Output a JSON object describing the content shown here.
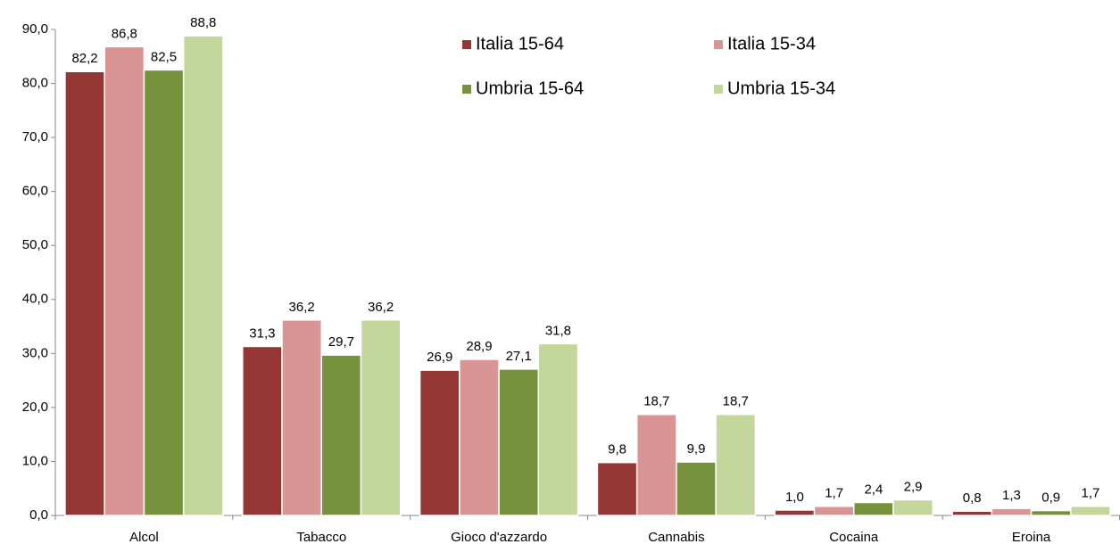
{
  "chart_data": {
    "type": "bar",
    "categories": [
      "Alcol",
      "Tabacco",
      "Gioco d'azzardo",
      "Cannabis",
      "Cocaina",
      "Eroina"
    ],
    "series": [
      {
        "name": "Italia 15-64",
        "color": "#943634",
        "values": [
          82.2,
          31.3,
          26.9,
          9.8,
          1.0,
          0.8
        ],
        "value_labels": [
          "82,2",
          "31,3",
          "26,9",
          "9,8",
          "1,0",
          "0,8"
        ]
      },
      {
        "name": "Italia 15-34",
        "color": "#d99594",
        "values": [
          86.8,
          36.2,
          28.9,
          18.7,
          1.7,
          1.3
        ],
        "value_labels": [
          "86,8",
          "36,2",
          "28,9",
          "18,7",
          "1,7",
          "1,3"
        ]
      },
      {
        "name": "Umbria 15-64",
        "color": "#76923c",
        "values": [
          82.5,
          29.7,
          27.1,
          9.9,
          2.4,
          0.9
        ],
        "value_labels": [
          "82,5",
          "29,7",
          "27,1",
          "9,9",
          "2,4",
          "0,9"
        ]
      },
      {
        "name": "Umbria 15-34",
        "color": "#c3d69b",
        "values": [
          88.8,
          36.2,
          31.8,
          18.7,
          2.9,
          1.7
        ],
        "value_labels": [
          "88,8",
          "36,2",
          "31,8",
          "18,7",
          "2,9",
          "1,7"
        ]
      }
    ],
    "ylim": [
      0,
      90
    ],
    "yticks": [
      {
        "value": 0,
        "label": "0,0"
      },
      {
        "value": 10,
        "label": "10,0"
      },
      {
        "value": 20,
        "label": "20,0"
      },
      {
        "value": 30,
        "label": "30,0"
      },
      {
        "value": 40,
        "label": "40,0"
      },
      {
        "value": 50,
        "label": "50,0"
      },
      {
        "value": 60,
        "label": "60,0"
      },
      {
        "value": 70,
        "label": "70,0"
      },
      {
        "value": 80,
        "label": "80,0"
      },
      {
        "value": 90,
        "label": "90,0"
      }
    ],
    "grid": false,
    "legend": "top"
  }
}
